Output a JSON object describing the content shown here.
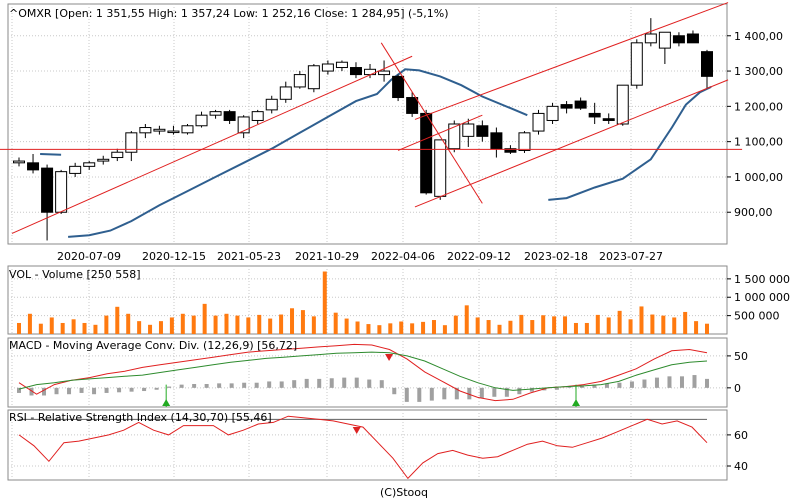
{
  "colors": {
    "bg": "#ffffff",
    "panel_bg": "#ffffff",
    "frame": "#8a8a8a",
    "grid": "#c8c8c8",
    "up_fill": "#ffffff",
    "down_fill": "#000000",
    "candle_stroke": "#000000",
    "ma_line": "#2f5f8f",
    "trend_line": "#e02020",
    "volume_bar": "#ff7a10",
    "macd_line": "#e02020",
    "signal_line": "#2e8b2e",
    "hist_bar": "#a0a0a0",
    "rsi_line": "#e02020",
    "rsi_level": "#606060",
    "marker_up": "#22aa22",
    "marker_down": "#dd2222"
  },
  "footer": {
    "credit": "(C)Stooq"
  },
  "chart_data": [
    {
      "type": "candlestick",
      "title": "^OMXR [Open: 1 351,55  High: 1 357,24  Low: 1 252,16  Close: 1 284,95]  (-5,1%)",
      "x_tick_labels": [
        "2020-07-09",
        "2020-12-15",
        "2021-05-23",
        "2021-10-29",
        "2022-04-06",
        "2022-09-12",
        "2023-02-18",
        "2023-07-27"
      ],
      "y_tick_labels": [
        "900,00",
        "1 000,00",
        "1 100,00",
        "1 200,00",
        "1 300,00",
        "1 400,00"
      ],
      "y_ticks": [
        900,
        1000,
        1100,
        1200,
        1300,
        1400
      ],
      "ylim": [
        810,
        1490
      ],
      "grid": true,
      "candles": [
        {
          "o": 1040,
          "h": 1055,
          "l": 1030,
          "c": 1045
        },
        {
          "o": 1040,
          "h": 1065,
          "l": 1010,
          "c": 1020
        },
        {
          "o": 1025,
          "h": 1035,
          "l": 820,
          "c": 900
        },
        {
          "o": 900,
          "h": 1020,
          "l": 895,
          "c": 1015
        },
        {
          "o": 1010,
          "h": 1040,
          "l": 1000,
          "c": 1030
        },
        {
          "o": 1030,
          "h": 1045,
          "l": 1020,
          "c": 1040
        },
        {
          "o": 1045,
          "h": 1060,
          "l": 1035,
          "c": 1050
        },
        {
          "o": 1055,
          "h": 1080,
          "l": 1045,
          "c": 1070
        },
        {
          "o": 1070,
          "h": 1130,
          "l": 1045,
          "c": 1125
        },
        {
          "o": 1125,
          "h": 1150,
          "l": 1110,
          "c": 1140
        },
        {
          "o": 1130,
          "h": 1145,
          "l": 1120,
          "c": 1135
        },
        {
          "o": 1130,
          "h": 1145,
          "l": 1120,
          "c": 1130
        },
        {
          "o": 1125,
          "h": 1150,
          "l": 1120,
          "c": 1145
        },
        {
          "o": 1145,
          "h": 1185,
          "l": 1140,
          "c": 1175
        },
        {
          "o": 1175,
          "h": 1190,
          "l": 1165,
          "c": 1185
        },
        {
          "o": 1185,
          "h": 1190,
          "l": 1150,
          "c": 1160
        },
        {
          "o": 1125,
          "h": 1175,
          "l": 1110,
          "c": 1170
        },
        {
          "o": 1160,
          "h": 1190,
          "l": 1150,
          "c": 1185
        },
        {
          "o": 1190,
          "h": 1230,
          "l": 1180,
          "c": 1220
        },
        {
          "o": 1220,
          "h": 1270,
          "l": 1210,
          "c": 1255
        },
        {
          "o": 1255,
          "h": 1300,
          "l": 1250,
          "c": 1290
        },
        {
          "o": 1250,
          "h": 1320,
          "l": 1240,
          "c": 1315
        },
        {
          "o": 1300,
          "h": 1330,
          "l": 1290,
          "c": 1320
        },
        {
          "o": 1310,
          "h": 1330,
          "l": 1300,
          "c": 1325
        },
        {
          "o": 1310,
          "h": 1325,
          "l": 1280,
          "c": 1290
        },
        {
          "o": 1290,
          "h": 1320,
          "l": 1280,
          "c": 1305
        },
        {
          "o": 1290,
          "h": 1330,
          "l": 1270,
          "c": 1300
        },
        {
          "o": 1285,
          "h": 1290,
          "l": 1215,
          "c": 1225
        },
        {
          "o": 1225,
          "h": 1240,
          "l": 1170,
          "c": 1180
        },
        {
          "o": 1180,
          "h": 1190,
          "l": 950,
          "c": 955
        },
        {
          "o": 945,
          "h": 1105,
          "l": 935,
          "c": 1105
        },
        {
          "o": 1080,
          "h": 1160,
          "l": 1070,
          "c": 1150
        },
        {
          "o": 1115,
          "h": 1165,
          "l": 1085,
          "c": 1150
        },
        {
          "o": 1145,
          "h": 1160,
          "l": 1100,
          "c": 1115
        },
        {
          "o": 1125,
          "h": 1140,
          "l": 1055,
          "c": 1080
        },
        {
          "o": 1080,
          "h": 1090,
          "l": 1065,
          "c": 1070
        },
        {
          "o": 1075,
          "h": 1130,
          "l": 1068,
          "c": 1125
        },
        {
          "o": 1130,
          "h": 1190,
          "l": 1120,
          "c": 1180
        },
        {
          "o": 1160,
          "h": 1210,
          "l": 1150,
          "c": 1200
        },
        {
          "o": 1205,
          "h": 1215,
          "l": 1180,
          "c": 1195
        },
        {
          "o": 1215,
          "h": 1225,
          "l": 1190,
          "c": 1195
        },
        {
          "o": 1180,
          "h": 1210,
          "l": 1150,
          "c": 1170
        },
        {
          "o": 1165,
          "h": 1180,
          "l": 1150,
          "c": 1160
        },
        {
          "o": 1150,
          "h": 1260,
          "l": 1145,
          "c": 1260
        },
        {
          "o": 1260,
          "h": 1390,
          "l": 1250,
          "c": 1380
        },
        {
          "o": 1380,
          "h": 1450,
          "l": 1370,
          "c": 1405
        },
        {
          "o": 1365,
          "h": 1410,
          "l": 1320,
          "c": 1410
        },
        {
          "o": 1400,
          "h": 1410,
          "l": 1370,
          "c": 1380
        },
        {
          "o": 1405,
          "h": 1415,
          "l": 1385,
          "c": 1380
        },
        {
          "o": 1355,
          "h": 1360,
          "l": 1250,
          "c": 1285
        }
      ],
      "moving_average": [
        {
          "i": 1.5,
          "v": 1065
        },
        {
          "i": 3.0,
          "v": 1063
        },
        {
          "i": 3.5,
          "v": 830
        },
        {
          "i": 5,
          "v": 835
        },
        {
          "i": 6.5,
          "v": 848
        },
        {
          "i": 8,
          "v": 875
        },
        {
          "i": 10,
          "v": 920
        },
        {
          "i": 12,
          "v": 960
        },
        {
          "i": 14,
          "v": 1000
        },
        {
          "i": 16,
          "v": 1040
        },
        {
          "i": 18,
          "v": 1080
        },
        {
          "i": 20,
          "v": 1125
        },
        {
          "i": 22,
          "v": 1170
        },
        {
          "i": 24,
          "v": 1215
        },
        {
          "i": 25.5,
          "v": 1235
        },
        {
          "i": 26.5,
          "v": 1275
        },
        {
          "i": 27.5,
          "v": 1305
        },
        {
          "i": 28.5,
          "v": 1302
        },
        {
          "i": 30,
          "v": 1285
        },
        {
          "i": 31.5,
          "v": 1260
        },
        {
          "i": 33,
          "v": 1228
        },
        {
          "i": 35,
          "v": 1195
        },
        {
          "i": 36.2,
          "v": 1175
        },
        {
          "i": 37.7,
          "v": 935
        },
        {
          "i": 39,
          "v": 940
        },
        {
          "i": 41,
          "v": 970
        },
        {
          "i": 43,
          "v": 995
        },
        {
          "i": 45,
          "v": 1050
        },
        {
          "i": 46.5,
          "v": 1140
        },
        {
          "i": 47.5,
          "v": 1205
        },
        {
          "i": 48.5,
          "v": 1240
        },
        {
          "i": 49.3,
          "v": 1255
        }
      ],
      "trend_lines": [
        {
          "i1": -0.5,
          "v1": 840,
          "i2": 28,
          "v2": 1342
        },
        {
          "i1": 25.8,
          "v1": 1380,
          "i2": 33,
          "v2": 925
        },
        {
          "i1": 27,
          "v1": 1075,
          "i2": 33,
          "v2": 1175
        },
        {
          "i1": 28.2,
          "v1": 915,
          "i2": 50.5,
          "v2": 1275
        },
        {
          "i1": 28.2,
          "v1": 1163,
          "i2": 50.5,
          "v2": 1494
        },
        {
          "i1": -1.5,
          "v1": 1078,
          "i2": 51.5,
          "v2": 1078
        }
      ]
    },
    {
      "type": "bar",
      "title": "VOL - Volume [250 558]",
      "y_tick_labels": [
        "500 000",
        "1 000 000",
        "1 500 000"
      ],
      "y_ticks": [
        500000,
        1000000,
        1500000
      ],
      "ylim": [
        0,
        1850000
      ],
      "values": [
        300000,
        550000,
        280000,
        450000,
        300000,
        400000,
        300000,
        250000,
        500000,
        740000,
        550000,
        350000,
        250000,
        350000,
        450000,
        550000,
        500000,
        820000,
        500000,
        550000,
        500000,
        450000,
        520000,
        420000,
        530000,
        700000,
        650000,
        480000,
        1700000,
        580000,
        420000,
        340000,
        270000,
        240000,
        290000,
        340000,
        290000,
        330000,
        380000,
        240000,
        500000,
        780000,
        450000,
        380000,
        250000,
        360000,
        520000,
        380000,
        510000,
        480000,
        480000,
        300000,
        300000,
        520000,
        450000,
        630000,
        400000,
        750000,
        530000,
        500000,
        450000,
        600000,
        350000,
        280000
      ]
    },
    {
      "type": "line",
      "title": "MACD - Moving Average Conv. Div. (12,26,9) [56,72]",
      "y_tick_labels": [
        "0",
        "50"
      ],
      "y_ticks": [
        0,
        50
      ],
      "ylim": [
        -30,
        78
      ],
      "series": [
        {
          "name": "MACD",
          "values": [
            8,
            -10,
            5,
            12,
            16,
            22,
            26,
            32,
            36,
            40,
            44,
            48,
            52,
            56,
            58,
            60,
            62,
            64,
            66,
            68,
            67,
            60,
            45,
            25,
            10,
            -5,
            -15,
            -20,
            -18,
            -8,
            0,
            2,
            5,
            10,
            20,
            30,
            45,
            58,
            60,
            55
          ]
        },
        {
          "name": "Signal",
          "values": [
            -2,
            5,
            8,
            12,
            14,
            16,
            18,
            20,
            24,
            28,
            32,
            36,
            40,
            43,
            46,
            48,
            50,
            52,
            54,
            55,
            56,
            55,
            50,
            42,
            30,
            18,
            8,
            0,
            -4,
            -2,
            0,
            2,
            3,
            5,
            10,
            20,
            28,
            36,
            40,
            42
          ]
        }
      ],
      "histogram": [
        -8,
        -12,
        -12,
        -10,
        -10,
        -8,
        -10,
        -8,
        -7,
        -6,
        -5,
        -3,
        2,
        5,
        6,
        6,
        7,
        7,
        8,
        8,
        10,
        10,
        12,
        14,
        14,
        15,
        16,
        16,
        13,
        12,
        -10,
        -22,
        -22,
        -20,
        -18,
        -18,
        -18,
        -16,
        -14,
        -14,
        -10,
        -6,
        -4,
        -3,
        3,
        4,
        5,
        7,
        8,
        10,
        13,
        16,
        18,
        18,
        20,
        14
      ],
      "markers": [
        {
          "i": 0.22,
          "kind": "buy"
        },
        {
          "i": 0.53,
          "kind": "sell"
        },
        {
          "i": 0.79,
          "kind": "buy"
        }
      ]
    },
    {
      "type": "line",
      "title": "RSI - Relative Strength Index (14,30,70) [55,46]",
      "y_tick_labels": [
        "40",
        "60"
      ],
      "y_ticks": [
        40,
        60
      ],
      "ylim": [
        31,
        76
      ],
      "levels": [
        70
      ],
      "series": [
        {
          "name": "RSI",
          "values": [
            60,
            53,
            43,
            55,
            56,
            58,
            60,
            63,
            68,
            63,
            60,
            66,
            66,
            66,
            60,
            63,
            67,
            68,
            72,
            71,
            70,
            69,
            67,
            65,
            55,
            45,
            32,
            42,
            48,
            50,
            47,
            45,
            46,
            50,
            54,
            56,
            53,
            52,
            55,
            58,
            62,
            66,
            70,
            67,
            69,
            65,
            55
          ]
        }
      ],
      "markers": [
        {
          "i": 0.485,
          "kind": "sell"
        }
      ]
    }
  ]
}
